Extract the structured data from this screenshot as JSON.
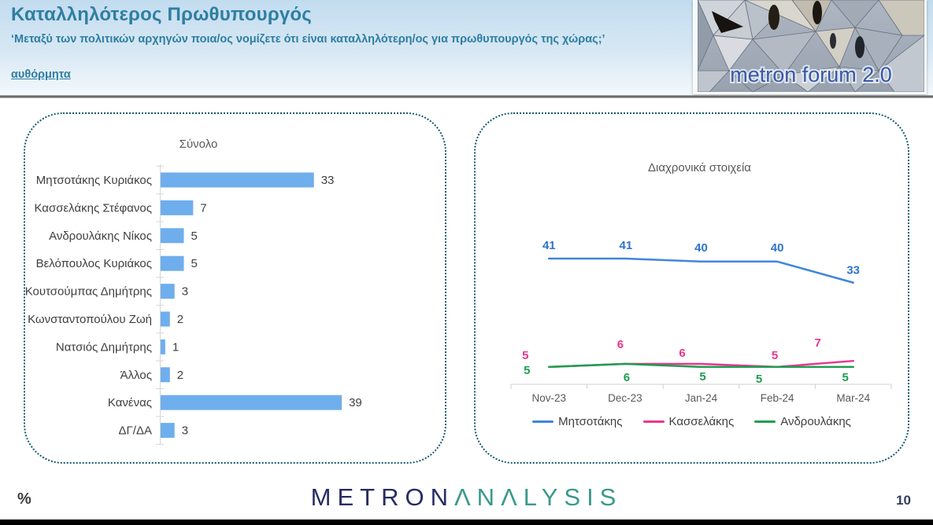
{
  "header": {
    "title": "Καταλληλότερος Πρωθυπουργός",
    "question": "‘Μεταξύ των πολιτικών αρχηγών ποια/ος νομίζετε ότι είναι καταλληλότερη/ος για πρωθυπουργός της χώρας;’",
    "method_note": "αυθόρμητα",
    "logo_text": "metron forum 2.0"
  },
  "theme": {
    "header_text": "#2E7EA2",
    "panel_border": "#145A6E",
    "text_muted": "#595959",
    "text_dark": "#404040",
    "axis_line": "#D6D6D6",
    "brand_navy": "#272C63",
    "brand_teal": "#3A9A8B",
    "logo_blue": "#3B57A8",
    "hg_top": "#C2DCEF",
    "hg_bot": "#F3F8FC"
  },
  "chart_data": [
    {
      "type": "bar",
      "orientation": "horizontal",
      "title": "Σύνολο",
      "categories": [
        "Μητσοτάκης Κυριάκος",
        "Κασσελάκης Στέφανος",
        "Ανδρουλάκης Νίκος",
        "Βελόπουλος Κυριάκος",
        "Κουτσούμπας Δημήτρης",
        "Κωνσταντοπούλου Ζωή",
        "Νατσιός Δημήτρης",
        "Άλλος",
        "Κανένας",
        "ΔΓ/ΔΑ"
      ],
      "values": [
        33,
        7,
        5,
        5,
        3,
        2,
        1,
        2,
        39,
        3
      ],
      "bar_color": "#6FAEEC",
      "xlim": [
        0,
        45
      ],
      "grid": false,
      "unit": "%"
    },
    {
      "type": "line",
      "title": "Διαχρονικά στοιχεία",
      "x": [
        "Nov-23",
        "Dec-23",
        "Jan-24",
        "Feb-24",
        "Mar-24"
      ],
      "series": [
        {
          "name": "Μητσοτάκης",
          "color": "#3E86DC",
          "label_color": "#2E75C9",
          "values": [
            41,
            41,
            40,
            40,
            33
          ]
        },
        {
          "name": "Κασσελάκης",
          "color": "#E8378F",
          "label_color": "#E8378F",
          "values": [
            5,
            6,
            6,
            5,
            7
          ]
        },
        {
          "name": "Ανδρουλάκης",
          "color": "#1E9E50",
          "label_color": "#1E9E50",
          "values": [
            5,
            6,
            5,
            5,
            5
          ]
        }
      ],
      "ylim": [
        0,
        45
      ],
      "grid": false,
      "legend_position": "bottom",
      "unit": "%"
    }
  ],
  "footer": {
    "percent_label": "%",
    "brand_primary": "METRON",
    "brand_secondary": "ΛΝΛLYSIS",
    "page_number": "10"
  }
}
